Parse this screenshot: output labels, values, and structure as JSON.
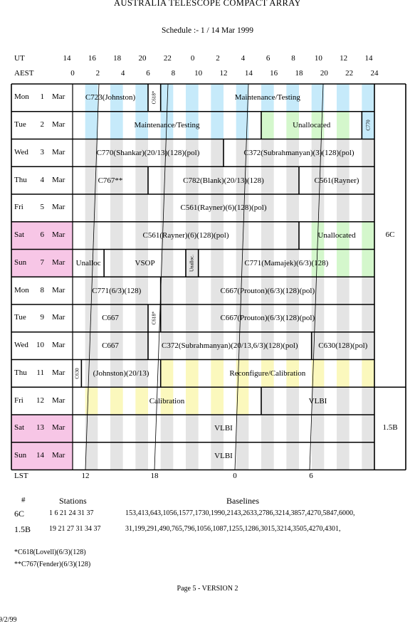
{
  "header": {
    "title": "AUSTRALIA TELESCOPE COMPACT ARRAY",
    "subtitle": "Schedule :- 1 / 14 Mar 1999"
  },
  "axes": {
    "ut_label": "UT",
    "aest_label": "AEST",
    "lst_label": "LST",
    "ut_ticks": [
      "14",
      "16",
      "18",
      "20",
      "22",
      "0",
      "2",
      "4",
      "6",
      "8",
      "10",
      "12",
      "14"
    ],
    "aest_ticks": [
      "0",
      "2",
      "4",
      "6",
      "8",
      "10",
      "12",
      "14",
      "16",
      "18",
      "20",
      "22",
      "24"
    ],
    "lst_ticks": [
      "12",
      "18",
      "0",
      "6"
    ]
  },
  "days": [
    {
      "dow": "Mon",
      "num": "1",
      "mon": "Mar",
      "weekend": false,
      "bands": "blue"
    },
    {
      "dow": "Tue",
      "num": "2",
      "mon": "Mar",
      "weekend": false,
      "bands": "blue-green"
    },
    {
      "dow": "Wed",
      "num": "3",
      "mon": "Mar",
      "weekend": false,
      "bands": "grey"
    },
    {
      "dow": "Thu",
      "num": "4",
      "mon": "Mar",
      "weekend": false,
      "bands": "grey"
    },
    {
      "dow": "Fri",
      "num": "5",
      "mon": "Mar",
      "weekend": false,
      "bands": "grey"
    },
    {
      "dow": "Sat",
      "num": "6",
      "mon": "Mar",
      "weekend": true,
      "bands": "grey-green"
    },
    {
      "dow": "Sun",
      "num": "7",
      "mon": "Mar",
      "weekend": true,
      "bands": "grey-green"
    },
    {
      "dow": "Mon",
      "num": "8",
      "mon": "Mar",
      "weekend": false,
      "bands": "grey"
    },
    {
      "dow": "Tue",
      "num": "9",
      "mon": "Mar",
      "weekend": false,
      "bands": "grey"
    },
    {
      "dow": "Wed",
      "num": "10",
      "mon": "Mar",
      "weekend": false,
      "bands": "grey"
    },
    {
      "dow": "Thu",
      "num": "11",
      "mon": "Mar",
      "weekend": false,
      "bands": "grey-yellow"
    },
    {
      "dow": "Fri",
      "num": "12",
      "mon": "Mar",
      "weekend": false,
      "bands": "yellow-grey"
    },
    {
      "dow": "Sat",
      "num": "13",
      "mon": "Mar",
      "weekend": true,
      "bands": "grey"
    },
    {
      "dow": "Sun",
      "num": "14",
      "mon": "Mar",
      "weekend": true,
      "bands": "grey"
    }
  ],
  "blocks": [
    {
      "day": 0,
      "start": 0,
      "end": 6,
      "text": "C723(Johnston)"
    },
    {
      "day": 0,
      "start": 6,
      "end": 7,
      "text": "C618*",
      "vertical": true
    },
    {
      "day": 0,
      "start": 7,
      "end": 24,
      "text": "Maintenance/Testing"
    },
    {
      "day": 1,
      "start": 0,
      "end": 15,
      "text": "Maintenance/Testing"
    },
    {
      "day": 1,
      "start": 15,
      "end": 23,
      "text": "Unallocated"
    },
    {
      "day": 1,
      "start": 23,
      "end": 24,
      "text": "C770",
      "vertical": true
    },
    {
      "day": 2,
      "start": 0,
      "end": 12,
      "text": "C770(Shankar)(20/13)(128)(pol)"
    },
    {
      "day": 2,
      "start": 12,
      "end": 24,
      "text": "C372(Subrahmanyan)(3)(128)(pol)"
    },
    {
      "day": 3,
      "start": 0,
      "end": 6,
      "text": "C767**"
    },
    {
      "day": 3,
      "start": 6,
      "end": 18,
      "text": "C782(Blank)(20/13)(128)"
    },
    {
      "day": 3,
      "start": 18,
      "end": 24,
      "text": "C561(Rayner)"
    },
    {
      "day": 4,
      "start": 0,
      "end": 24,
      "text": "C561(Rayner)(6)(128)(pol)"
    },
    {
      "day": 5,
      "start": 0,
      "end": 18,
      "text": "C561(Rayner)(6)(128)(pol)"
    },
    {
      "day": 5,
      "start": 18,
      "end": 24,
      "text": "Unallocated"
    },
    {
      "day": 6,
      "start": 0,
      "end": 2.5,
      "text": "Unalloc"
    },
    {
      "day": 6,
      "start": 2.5,
      "end": 9,
      "text": "VSOP"
    },
    {
      "day": 6,
      "start": 9,
      "end": 10,
      "text": "Unalloc.",
      "vertical": true
    },
    {
      "day": 6,
      "start": 10,
      "end": 24,
      "text": "C771(Mamajek)(6/3)(128)"
    },
    {
      "day": 7,
      "start": 0,
      "end": 7,
      "text": "C771(6/3)(128)"
    },
    {
      "day": 7,
      "start": 7,
      "end": 24,
      "text": "C667(Prouton)(6/3)(128)(pol)"
    },
    {
      "day": 8,
      "start": 0,
      "end": 6,
      "text": "C667"
    },
    {
      "day": 8,
      "start": 6,
      "end": 7,
      "text": "C618*",
      "vertical": true
    },
    {
      "day": 8,
      "start": 7,
      "end": 24,
      "text": "C667(Prouton)(6/3)(128)(pol)"
    },
    {
      "day": 9,
      "start": 0,
      "end": 6,
      "text": "C667"
    },
    {
      "day": 9,
      "start": 6,
      "end": 19,
      "text": "C372(Subrahmanyan)(20/13,6/3)(128)(pol)"
    },
    {
      "day": 9,
      "start": 19,
      "end": 24,
      "text": "C630(128)(pol)"
    },
    {
      "day": 10,
      "start": 0,
      "end": 0.7,
      "text": "C630",
      "vertical": true
    },
    {
      "day": 10,
      "start": 0.7,
      "end": 7,
      "text": "(Johnston)(20/13)"
    },
    {
      "day": 10,
      "start": 7,
      "end": 24,
      "text": "Reconfigure/Calibration"
    },
    {
      "day": 11,
      "start": 0,
      "end": 15,
      "text": "Calibration"
    },
    {
      "day": 11,
      "start": 15,
      "end": 24,
      "text": "VLBI"
    },
    {
      "day": 12,
      "start": 0,
      "end": 24,
      "text": "VLBI"
    },
    {
      "day": 13,
      "start": 0,
      "end": 24,
      "text": "VLBI"
    }
  ],
  "configs": [
    {
      "label": "6C",
      "from": 0,
      "to": 10
    },
    {
      "label": "1.5B",
      "from": 11,
      "to": 13
    }
  ],
  "baselines": {
    "col_num": "#",
    "col_stations": "Stations",
    "col_baselines": "Baselines",
    "rows": [
      {
        "id": "6C",
        "stations": "1 6 21 24 31 37",
        "baselines": "153,413,643,1056,1577,1730,1990,2143,2633,2786,3214,3857,4270,5847,6000,"
      },
      {
        "id": "1.5B",
        "stations": "19 21 27 31 34 37",
        "baselines": "31,199,291,490,765,796,1056,1087,1255,1286,3015,3214,3505,4270,4301,"
      }
    ]
  },
  "notes": [
    "*C618(Lovell)(6/3)(128)",
    "**C767(Fender)(6/3)(128)"
  ],
  "footer": {
    "page": "Page 5 - VERSION 2",
    "date": "9/2/99"
  },
  "colors": {
    "grey": "#e4e4e4",
    "blue": "#c6eafa",
    "green": "#d4f7cc",
    "yellow": "#fbf8bd",
    "weekend": "#f7c6e6"
  }
}
